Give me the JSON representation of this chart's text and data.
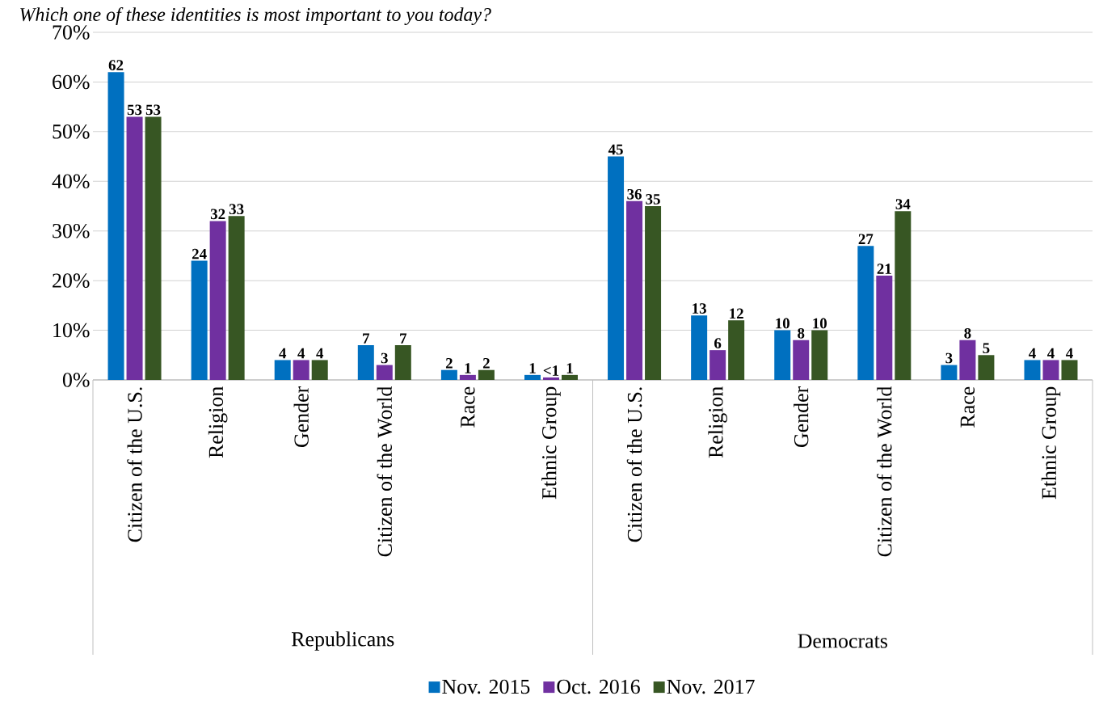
{
  "chart_data": {
    "type": "bar",
    "title": "Which one of these identities is most important to you today?",
    "categories": [
      "Citizen of the U.S.",
      "Religion",
      "Gender",
      "Citizen of the World",
      "Race",
      "Ethnic Group",
      "Citizen of the U.S.",
      "Religion",
      "Gender",
      "Citizen of the World",
      "Race",
      "Ethnic Group"
    ],
    "annotations": [
      "Republicans",
      "Democrats"
    ],
    "series": [
      {
        "name": "Nov. 2015",
        "color": "#0070c0",
        "values": [
          62,
          24,
          4,
          7,
          2,
          1,
          45,
          13,
          10,
          27,
          3,
          4
        ],
        "value_labels": [
          "62",
          "24",
          "4",
          "7",
          "2",
          "1",
          "45",
          "13",
          "10",
          "27",
          "3",
          "4"
        ]
      },
      {
        "name": "Oct. 2016",
        "color": "#7030a0",
        "values": [
          53,
          32,
          4,
          3,
          1,
          0.5,
          36,
          6,
          8,
          21,
          8,
          4
        ],
        "value_labels": [
          "53",
          "32",
          "4",
          "3",
          "1",
          "<1",
          "36",
          "6",
          "8",
          "21",
          "8",
          "4"
        ]
      },
      {
        "name": "Nov. 2017",
        "color": "#375623",
        "values": [
          53,
          33,
          4,
          7,
          2,
          1,
          35,
          12,
          10,
          34,
          5,
          4
        ],
        "value_labels": [
          "53",
          "33",
          "4",
          "7",
          "2",
          "1",
          "35",
          "12",
          "10",
          "34",
          "5",
          "4"
        ]
      }
    ],
    "ylim": [
      0,
      70
    ],
    "yticks": [
      {
        "value": 0,
        "label": "0%"
      },
      {
        "value": 10,
        "label": "10%"
      },
      {
        "value": 20,
        "label": "20%"
      },
      {
        "value": 30,
        "label": "30%"
      },
      {
        "value": 40,
        "label": "40%"
      },
      {
        "value": 50,
        "label": "50%"
      },
      {
        "value": 60,
        "label": "60%"
      },
      {
        "value": 70,
        "label": "70%"
      }
    ],
    "grid": "y",
    "legend": "bottom"
  }
}
